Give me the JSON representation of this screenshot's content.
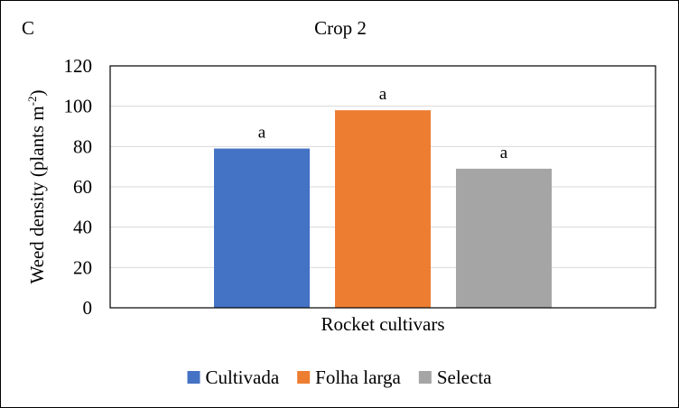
{
  "panel_letter": "C",
  "chart_data": {
    "type": "bar",
    "title": "Crop 2",
    "xlabel": "Rocket cultivars",
    "ylabel_main": "Weed density (plants m",
    "ylabel_sup": "-2",
    "ylabel_close": ")",
    "ylim": [
      0,
      120
    ],
    "yticks": [
      0,
      20,
      40,
      60,
      80,
      100,
      120
    ],
    "grid": true,
    "legend_position": "bottom",
    "series": [
      {
        "name": "Cultivada",
        "value": 79,
        "label": "a",
        "color": "#4472C4"
      },
      {
        "name": "Folha larga",
        "value": 98,
        "label": "a",
        "color": "#ED7D31"
      },
      {
        "name": "Selecta",
        "value": 69,
        "label": "a",
        "color": "#A5A5A5"
      }
    ]
  }
}
